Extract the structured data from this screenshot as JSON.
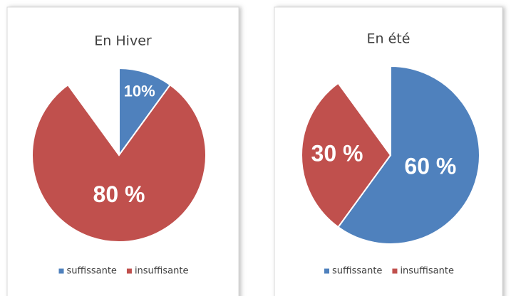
{
  "chart_data": [
    {
      "type": "pie",
      "title": "En Hiver",
      "categories": [
        "suffissante",
        "insuffisante"
      ],
      "values": [
        10,
        80
      ],
      "value_labels": [
        "10%",
        "80 %"
      ],
      "colors": [
        "#4f81bd",
        "#c0504d"
      ]
    },
    {
      "type": "pie",
      "title": "En été",
      "categories": [
        "suffissante",
        "insuffisante"
      ],
      "values": [
        60,
        30
      ],
      "value_labels": [
        "60 %",
        "30 %"
      ],
      "colors": [
        "#4f81bd",
        "#c0504d"
      ]
    }
  ]
}
